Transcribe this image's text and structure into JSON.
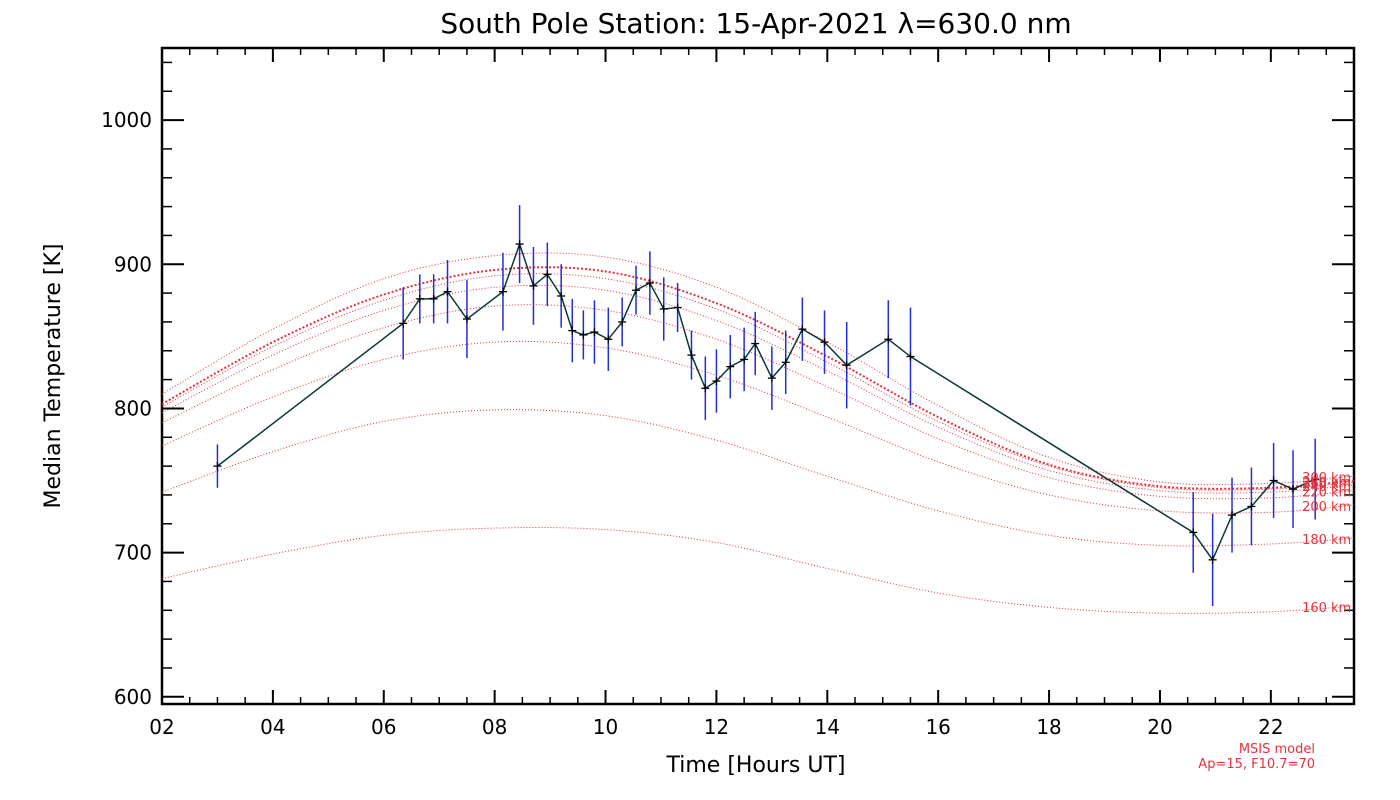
{
  "chart_data": {
    "type": "line",
    "title": "South Pole Station: 15-Apr-2021 λ=630.0 nm",
    "xlabel": "Time [Hours UT]",
    "ylabel": "Median Temperature [K]",
    "xlim": [
      2,
      23.5
    ],
    "ylim": [
      595,
      1050
    ],
    "x_ticks": [
      2,
      4,
      6,
      8,
      10,
      12,
      14,
      16,
      18,
      20,
      22
    ],
    "x_tick_labels": [
      "02",
      "04",
      "06",
      "08",
      "10",
      "12",
      "14",
      "16",
      "18",
      "20",
      "22"
    ],
    "y_ticks": [
      600,
      700,
      800,
      900,
      1000
    ],
    "y_tick_labels": [
      "600",
      "700",
      "800",
      "900",
      "1000"
    ],
    "grid": false,
    "colors": {
      "data_line": "#0b3a3a",
      "error_bar": "#1f2fd8",
      "model": "#e8323c",
      "axis": "#000000"
    },
    "series": [
      {
        "x": [
          3.0,
          6.35,
          6.65,
          6.9,
          7.15,
          7.5,
          8.15,
          8.45,
          8.7,
          8.95,
          9.2,
          9.4,
          9.6,
          9.8,
          10.05,
          10.3,
          10.55,
          10.8,
          11.05,
          11.3,
          11.55,
          11.8,
          12.0,
          12.25,
          12.5,
          12.7,
          13.0,
          13.25,
          13.55,
          13.95,
          14.35,
          15.1,
          15.5,
          20.6,
          20.95,
          21.3,
          21.65,
          22.05,
          22.4,
          22.8
        ],
        "y": [
          760,
          859,
          876,
          876,
          881,
          862,
          881,
          914,
          885,
          893,
          878,
          854,
          851,
          853,
          848,
          860,
          882,
          887,
          869,
          870,
          837,
          814,
          819,
          829,
          834,
          845,
          821,
          832,
          855,
          846,
          830,
          848,
          836,
          714,
          695,
          726,
          732,
          750,
          744,
          751
        ],
        "errors": [
          15,
          25,
          17,
          17,
          22,
          27,
          27,
          27,
          27,
          22,
          22,
          22,
          17,
          22,
          22,
          17,
          17,
          22,
          22,
          17,
          17,
          22,
          22,
          22,
          22,
          22,
          22,
          22,
          22,
          22,
          30,
          27,
          34,
          28,
          32,
          26,
          27,
          26,
          27,
          28
        ]
      }
    ],
    "model_curves": [
      {
        "label": "160 km",
        "x": [
          2,
          4,
          6,
          8,
          10,
          12,
          14,
          16,
          18,
          20,
          22,
          23.5
        ],
        "y": [
          682,
          699,
          712,
          717,
          716,
          707,
          689,
          672,
          662,
          658,
          659,
          663
        ]
      },
      {
        "label": "180 km",
        "x": [
          2,
          4,
          6,
          8,
          10,
          12,
          14,
          16,
          18,
          20,
          22,
          23.5
        ],
        "y": [
          742,
          770,
          791,
          799,
          795,
          778,
          753,
          729,
          712,
          705,
          706,
          710
        ]
      },
      {
        "label": "200 km",
        "x": [
          2,
          4,
          6,
          8,
          10,
          12,
          14,
          16,
          18,
          20,
          22,
          23.5
        ],
        "y": [
          774,
          808,
          834,
          846,
          842,
          823,
          794,
          763,
          740,
          729,
          728,
          733
        ]
      },
      {
        "label": "220 km",
        "x": [
          2,
          4,
          6,
          8,
          10,
          12,
          14,
          16,
          18,
          20,
          22,
          23.5
        ],
        "y": [
          790,
          827,
          856,
          871,
          868,
          848,
          815,
          779,
          752,
          739,
          738,
          743
        ]
      },
      {
        "label": "240 km",
        "x": [
          2,
          4,
          6,
          8,
          10,
          12,
          14,
          16,
          18,
          20,
          22,
          23.5
        ],
        "y": [
          797,
          837,
          868,
          884,
          882,
          861,
          826,
          787,
          757,
          743,
          742,
          747
        ]
      },
      {
        "label": "260 km",
        "x": [
          2,
          4,
          6,
          8,
          10,
          12,
          14,
          16,
          18,
          20,
          22,
          23.5
        ],
        "y": [
          801,
          843,
          875,
          892,
          890,
          869,
          832,
          791,
          760,
          745,
          744,
          749
        ]
      },
      {
        "label": "280 km",
        "x": [
          2,
          4,
          6,
          8,
          10,
          12,
          14,
          16,
          18,
          20,
          22,
          23.5
        ],
        "y": [
          803,
          846,
          879,
          896,
          895,
          873,
          836,
          794,
          761,
          746,
          745,
          750
        ]
      },
      {
        "label": "300 km",
        "x": [
          2,
          4,
          6,
          8,
          10,
          12,
          14,
          16,
          18,
          20,
          22,
          23.5
        ],
        "y": [
          810,
          855,
          890,
          906,
          905,
          884,
          846,
          802,
          766,
          749,
          748,
          753
        ]
      }
    ],
    "model_label_positions": {
      "x": 23.45
    },
    "notes": [
      "MSIS model",
      "Ap=15, F10.7=70"
    ]
  }
}
